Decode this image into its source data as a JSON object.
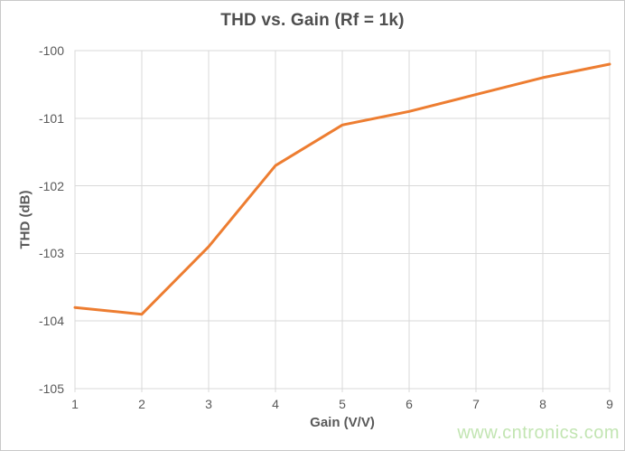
{
  "chart_data": {
    "type": "line",
    "title": "THD vs. Gain (Rf = 1k)",
    "xlabel": "Gain (V/V)",
    "ylabel": "THD (dB)",
    "categories": [
      1,
      2,
      3,
      4,
      5,
      6,
      7,
      8,
      9
    ],
    "series": [
      {
        "name": "THD",
        "color": "#ED7D31",
        "values": [
          -103.8,
          -103.9,
          -102.9,
          -101.7,
          -101.1,
          -100.9,
          -100.65,
          -100.4,
          -100.2
        ]
      }
    ],
    "xlim": [
      1,
      9
    ],
    "ylim": [
      -105,
      -100
    ],
    "xticks": [
      1,
      2,
      3,
      4,
      5,
      6,
      7,
      8,
      9
    ],
    "yticks": [
      -100,
      -101,
      -102,
      -103,
      -104,
      -105
    ],
    "grid": true,
    "legend_position": "none"
  },
  "styles": {
    "line_color": "#ED7D31",
    "grid_color": "#D9D9D9",
    "axis_text_color": "#595959",
    "title_color": "#4F4F4F",
    "background": "#FFFFFF",
    "frame_border_color": "#C9C9C9"
  },
  "watermark": {
    "text": "www.cntronics.com",
    "color": "#C2E5B2"
  }
}
